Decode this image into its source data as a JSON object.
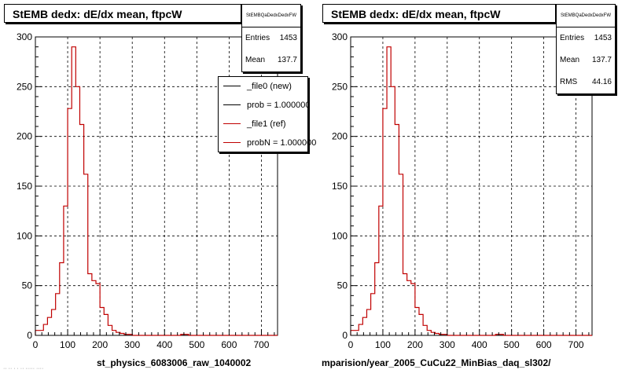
{
  "canvas": {
    "footer_note": "·· ·· · · ·· ····· ····"
  },
  "colors": {
    "ref": "#c00000",
    "new": "#000000",
    "grid": "#000000"
  },
  "legend": {
    "entries": [
      {
        "label": "_file0 (new)",
        "color": "#000000"
      },
      {
        "label": "prob = 1.000000",
        "color": "#000000"
      },
      {
        "label": "_file1 (ref)",
        "color": "#c00000"
      },
      {
        "label": "probN = 1.000000",
        "color": "#c00000"
      }
    ]
  },
  "chart_data": [
    {
      "type": "bar",
      "title": "StEMB dedx: dE/dx mean, ftpcW",
      "xlabel": "st_physics_6083006_raw_1040002",
      "ylabel": "",
      "xlim": [
        0,
        750
      ],
      "ylim": [
        0,
        300
      ],
      "xticks": [
        0,
        100,
        200,
        300,
        400,
        500,
        600,
        700
      ],
      "yticks": [
        0,
        50,
        100,
        150,
        200,
        250,
        300
      ],
      "grid": true,
      "legend_placement": "top-right",
      "stats": {
        "header": "StEMBQaDedxDedxFW",
        "rows": [
          {
            "label": "Entries",
            "value": "1453"
          },
          {
            "label": "Mean",
            "value": "137.7"
          }
        ]
      },
      "bin_width": 12.5,
      "series": [
        {
          "name": "_file1 (ref)",
          "color": "#c00000",
          "values": [
            5,
            5,
            11,
            18,
            26,
            42,
            73,
            130,
            228,
            290,
            250,
            212,
            162,
            62,
            55,
            52,
            28,
            21,
            10,
            5,
            3,
            2,
            1,
            1,
            0,
            0,
            0,
            0,
            0,
            0,
            0,
            0,
            0,
            0,
            0,
            0,
            1,
            1,
            0,
            0,
            0,
            0,
            0,
            0,
            0,
            0,
            0,
            0,
            0,
            0,
            0,
            0,
            0,
            0,
            0,
            0,
            0,
            0,
            0,
            0
          ]
        }
      ]
    },
    {
      "type": "bar",
      "title": "StEMB dedx: dE/dx mean, ftpcW",
      "xlabel": "mparision/year_2005_CuCu22_MinBias_daq_sl302/",
      "ylabel": "",
      "xlim": [
        0,
        750
      ],
      "ylim": [
        0,
        300
      ],
      "xticks": [
        0,
        100,
        200,
        300,
        400,
        500,
        600,
        700
      ],
      "yticks": [
        0,
        50,
        100,
        150,
        200,
        250,
        300
      ],
      "grid": true,
      "stats": {
        "header": "StEMBQaDedxDedxFW",
        "rows": [
          {
            "label": "Entries",
            "value": "1453"
          },
          {
            "label": "Mean",
            "value": "137.7"
          },
          {
            "label": "RMS",
            "value": "44.16"
          }
        ]
      },
      "bin_width": 12.5,
      "series": [
        {
          "name": "_file1 (ref)",
          "color": "#c00000",
          "values": [
            5,
            5,
            11,
            18,
            26,
            42,
            73,
            130,
            228,
            290,
            250,
            212,
            162,
            62,
            55,
            52,
            28,
            21,
            10,
            5,
            3,
            2,
            1,
            1,
            0,
            0,
            0,
            0,
            0,
            0,
            0,
            0,
            0,
            0,
            0,
            0,
            1,
            1,
            0,
            0,
            0,
            0,
            0,
            0,
            0,
            0,
            0,
            0,
            0,
            0,
            0,
            0,
            0,
            0,
            0,
            0,
            0,
            0,
            0,
            0
          ]
        }
      ]
    }
  ]
}
